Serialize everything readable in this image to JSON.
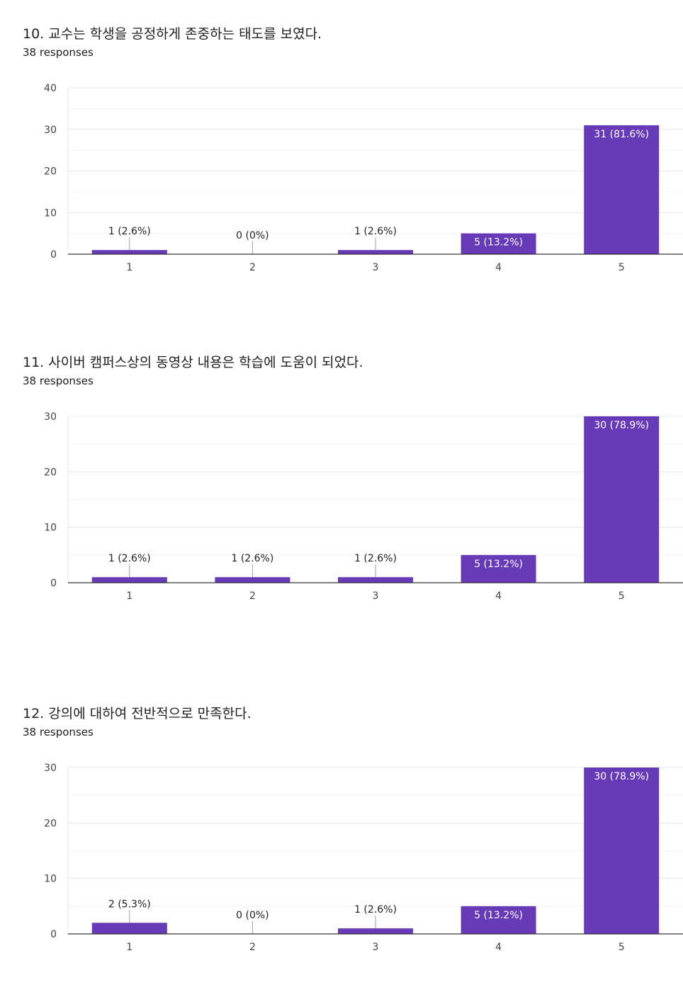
{
  "questions": [
    {
      "title": "10. 교수는 학생을 공정하게 존중하는 태도를 보였다.",
      "responses": "38 responses",
      "chart_data": {
        "type": "bar",
        "categories": [
          "1",
          "2",
          "3",
          "4",
          "5"
        ],
        "values": [
          1,
          0,
          1,
          5,
          31
        ],
        "labels": [
          "1 (2.6%)",
          "0 (0%)",
          "1 (2.6%)",
          "5 (13.2%)",
          "31 (81.6%)"
        ],
        "ylim": [
          0,
          40
        ],
        "yticks": [
          0,
          10,
          20,
          30,
          40
        ],
        "grid": true,
        "bar_color": "#673ab7"
      }
    },
    {
      "title": "11. 사이버 캠퍼스상의 동영상 내용은 학습에 도움이 되었다.",
      "responses": "38 responses",
      "chart_data": {
        "type": "bar",
        "categories": [
          "1",
          "2",
          "3",
          "4",
          "5"
        ],
        "values": [
          1,
          1,
          1,
          5,
          30
        ],
        "labels": [
          "1 (2.6%)",
          "1 (2.6%)",
          "1 (2.6%)",
          "5 (13.2%)",
          "30 (78.9%)"
        ],
        "ylim": [
          0,
          30
        ],
        "yticks": [
          0,
          10,
          20,
          30
        ],
        "grid": true,
        "bar_color": "#673ab7"
      }
    },
    {
      "title": "12. 강의에 대하여 전반적으로 만족한다.",
      "responses": "38 responses",
      "chart_data": {
        "type": "bar",
        "categories": [
          "1",
          "2",
          "3",
          "4",
          "5"
        ],
        "values": [
          2,
          0,
          1,
          5,
          30
        ],
        "labels": [
          "2 (5.3%)",
          "0 (0%)",
          "1 (2.6%)",
          "5 (13.2%)",
          "30 (78.9%)"
        ],
        "ylim": [
          0,
          30
        ],
        "yticks": [
          0,
          10,
          20,
          30
        ],
        "grid": true,
        "bar_color": "#673ab7"
      }
    }
  ]
}
